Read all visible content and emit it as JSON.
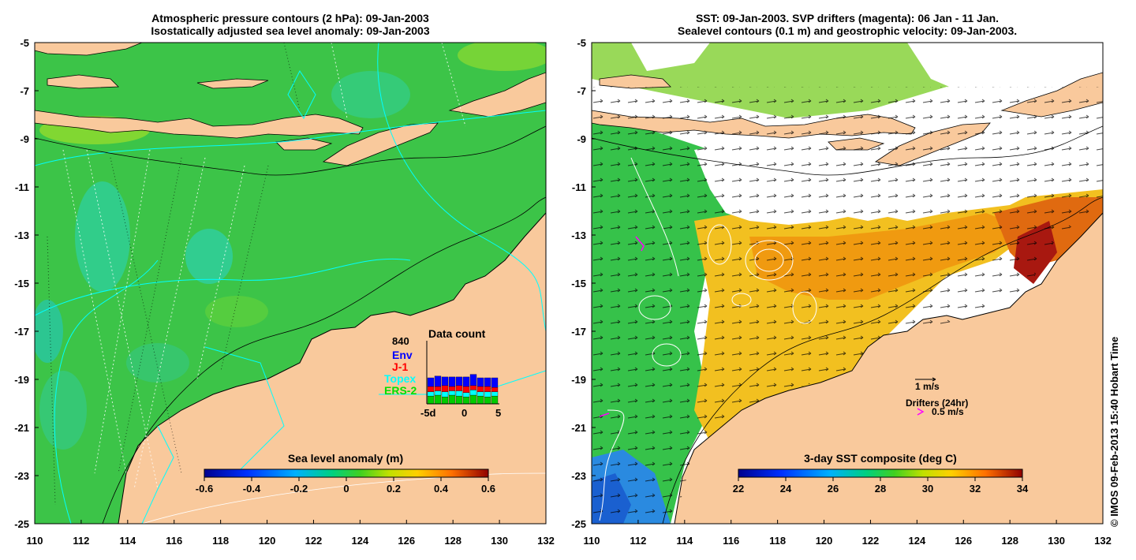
{
  "left_panel": {
    "title_line1": "Atmospheric pressure contours (2 hPa): 09-Jan-2003",
    "title_line2": "Isostatically adjusted sea level anomaly: 09-Jan-2003",
    "colorbar_label": "Sea level anomaly (m)",
    "colorbar_ticks": [
      "-0.6",
      "-0.4",
      "-0.2",
      "0",
      "0.2",
      "0.4",
      "0.6"
    ],
    "inset": {
      "count": "840",
      "title": "Data count",
      "legend": [
        {
          "label": "Env",
          "color": "#0000ff"
        },
        {
          "label": "J-1",
          "color": "#ff0000"
        },
        {
          "label": "Topex",
          "color": "#00ffff"
        },
        {
          "label": "ERS-2",
          "color": "#00cc00"
        }
      ],
      "x_ticks": [
        "-5d",
        "0",
        "5"
      ]
    }
  },
  "right_panel": {
    "title_line1": "SST: 09-Jan-2003. SVP drifters (magenta): 06 Jan - 11 Jan.",
    "title_line2": "Sealevel contours (0.1 m) and geostrophic velocity: 09-Jan-2003.",
    "colorbar_label": "3-day SST composite (deg C)",
    "colorbar_ticks": [
      "22",
      "24",
      "26",
      "28",
      "30",
      "32",
      "34"
    ],
    "scale_arrow_label": "1 m/s",
    "drifters_label": "Drifters (24hr)",
    "drifter_scale_label": "0.5 m/s"
  },
  "axes": {
    "lat_ticks": [
      "-5",
      "-7",
      "-9",
      "-11",
      "-13",
      "-15",
      "-17",
      "-19",
      "-21",
      "-23",
      "-25"
    ],
    "lon_ticks": [
      "110",
      "112",
      "114",
      "116",
      "118",
      "120",
      "122",
      "124",
      "126",
      "128",
      "130",
      "132"
    ]
  },
  "credit": "© IMOS 09-Feb-2013 15:40 Hobart Time",
  "colors": {
    "land": "#f9c99c",
    "ocean_green": "#3fc94a",
    "cloud_white": "#ffffff"
  }
}
